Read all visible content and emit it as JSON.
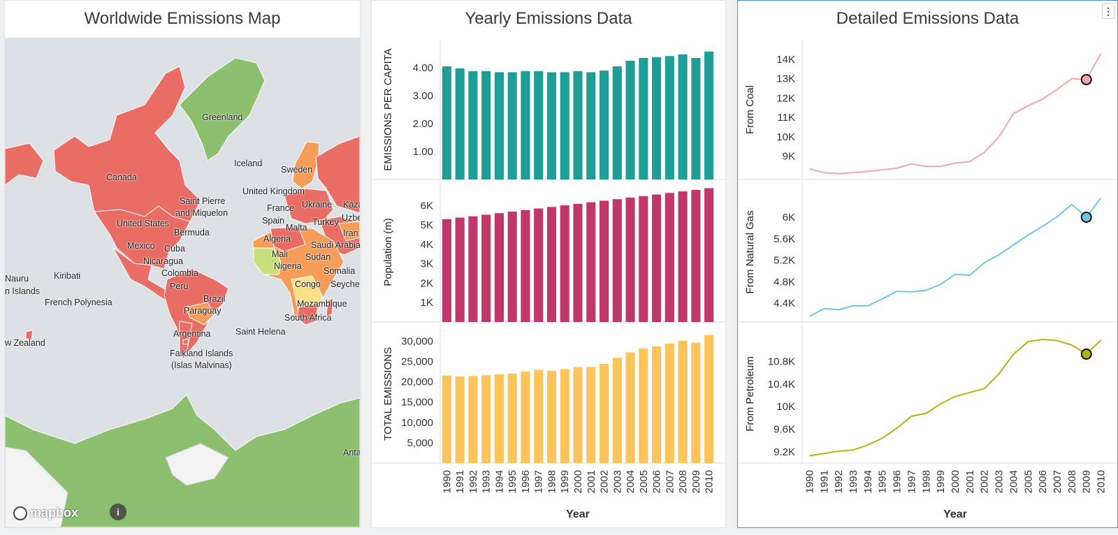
{
  "panels": {
    "map_title": "Worldwide Emissions Map",
    "yearly_title": "Yearly Emissions Data",
    "detail_title": "Detailed Emissions Data"
  },
  "map": {
    "labels": {
      "greenland": "Greenland",
      "iceland": "Iceland",
      "sweden": "Sweden",
      "canada": "Canada",
      "uk": "United Kingdom",
      "saint_pierre_1": "Saint Pierre",
      "saint_pierre_2": "and Miquelon",
      "france": "France",
      "ukraine": "Ukraine",
      "kaz": "Kaza",
      "spain": "Spain",
      "uzbe": "Uzbe",
      "malta": "Malta",
      "turkey": "Turkey",
      "iran": "Iran",
      "us": "United States",
      "bermuda": "Bermuda",
      "algeria": "Algeria",
      "saudi": "Saudi Arabia",
      "mexico": "Mexico",
      "cuba": "Cuba",
      "mali": "Mali",
      "sudan": "Sudan",
      "nicaragua": "Nicaragua",
      "nigeria": "Nigeria",
      "colombia": "Colombia",
      "somalia": "Somalia",
      "nauru": "Nauru",
      "kiribati": "Kiribati",
      "congo": "Congo",
      "seyche": "Seyche",
      "islands": "n Islands",
      "peru": "Peru",
      "brazil": "Brazil",
      "french_poly": "French Polynesia",
      "mozambique": "Mozambique",
      "paraguay": "Paraguay",
      "south_africa": "South Africa",
      "argentina": "Argentina",
      "saint_helena": "Saint Helena",
      "new_zealand": "w Zealand",
      "falkland_1": "Falkland Islands",
      "falkland_2": "(Islas Malvinas)",
      "anta": "Anta"
    },
    "attribution": "mapbox",
    "info_icon": "i"
  },
  "detail_menu_icon": "⋮",
  "chart_data": [
    {
      "type": "bar",
      "ylabel": "EMISSIONS PER CAPITA",
      "categories": [
        "1990",
        "1991",
        "1992",
        "1993",
        "1994",
        "1995",
        "1996",
        "1997",
        "1998",
        "1999",
        "2000",
        "2001",
        "2002",
        "2003",
        "2004",
        "2005",
        "2006",
        "2007",
        "2008",
        "2009",
        "2010"
      ],
      "values": [
        4.05,
        3.98,
        3.88,
        3.88,
        3.84,
        3.84,
        3.88,
        3.88,
        3.84,
        3.84,
        3.88,
        3.84,
        3.9,
        4.05,
        4.25,
        4.35,
        4.38,
        4.42,
        4.48,
        4.35,
        4.58
      ],
      "ylim": [
        0,
        5.0
      ],
      "yticks": [
        "1.00",
        "2.00",
        "3.00",
        "4.00"
      ],
      "color": "#1e9e96"
    },
    {
      "type": "bar",
      "ylabel": "Population (m)",
      "categories": [
        "1990",
        "1991",
        "1992",
        "1993",
        "1994",
        "1995",
        "1996",
        "1997",
        "1998",
        "1999",
        "2000",
        "2001",
        "2002",
        "2003",
        "2004",
        "2005",
        "2006",
        "2007",
        "2008",
        "2009",
        "2010"
      ],
      "values": [
        5300,
        5380,
        5450,
        5530,
        5610,
        5690,
        5770,
        5850,
        5930,
        6010,
        6090,
        6170,
        6250,
        6330,
        6410,
        6490,
        6570,
        6650,
        6730,
        6810,
        6900
      ],
      "ylim": [
        0,
        7200
      ],
      "yticks": [
        "1K",
        "2K",
        "3K",
        "4K",
        "5K",
        "6K"
      ],
      "color": "#c0386a"
    },
    {
      "type": "bar",
      "xlabel": "Year",
      "ylabel": "TOTAL EMISSIONS",
      "categories": [
        "1990",
        "1991",
        "1992",
        "1993",
        "1994",
        "1995",
        "1996",
        "1997",
        "1998",
        "1999",
        "2000",
        "2001",
        "2002",
        "2003",
        "2004",
        "2005",
        "2006",
        "2007",
        "2008",
        "2009",
        "2010"
      ],
      "values": [
        21500,
        21300,
        21400,
        21600,
        21800,
        22000,
        22500,
        22900,
        22700,
        23100,
        23600,
        23600,
        24400,
        25900,
        27200,
        28200,
        28700,
        29400,
        30100,
        29600,
        31500
      ],
      "ylim": [
        0,
        34000
      ],
      "yticks": [
        "5,000",
        "10,000",
        "15,000",
        "20,000",
        "25,000",
        "30,000"
      ],
      "color": "#fdc45c"
    },
    {
      "type": "line",
      "ylabel": "From Coal",
      "x": [
        "1990",
        "1991",
        "1992",
        "1993",
        "1994",
        "1995",
        "1996",
        "1997",
        "1998",
        "1999",
        "2000",
        "2001",
        "2002",
        "2003",
        "2004",
        "2005",
        "2006",
        "2007",
        "2008",
        "2009",
        "2010"
      ],
      "values": [
        8350,
        8150,
        8100,
        8150,
        8220,
        8300,
        8380,
        8600,
        8480,
        8480,
        8650,
        8720,
        9200,
        10000,
        11200,
        11600,
        11950,
        12450,
        13000,
        12950,
        14300
      ],
      "ylim": [
        7800,
        15000
      ],
      "yticks": [
        "9K",
        "10K",
        "11K",
        "12K",
        "13K",
        "14K"
      ],
      "highlight_year": "2009",
      "color": "#f4a7a8"
    },
    {
      "type": "line",
      "ylabel": "From Natural Gas",
      "x": [
        "1990",
        "1991",
        "1992",
        "1993",
        "1994",
        "1995",
        "1996",
        "1997",
        "1998",
        "1999",
        "2000",
        "2001",
        "2002",
        "2003",
        "2004",
        "2005",
        "2006",
        "2007",
        "2008",
        "2009",
        "2010"
      ],
      "values": [
        4150,
        4300,
        4280,
        4350,
        4350,
        4480,
        4620,
        4610,
        4640,
        4750,
        4940,
        4920,
        5150,
        5300,
        5480,
        5670,
        5830,
        6010,
        6240,
        6000,
        6360
      ],
      "ylim": [
        4050,
        6650
      ],
      "yticks": [
        "4.4K",
        "4.8K",
        "5.2K",
        "5.6K",
        "6K"
      ],
      "highlight_year": "2009",
      "color": "#6cc7e8"
    },
    {
      "type": "line",
      "xlabel": "Year",
      "ylabel": "From Petroleum",
      "x": [
        "1990",
        "1991",
        "1992",
        "1993",
        "1994",
        "1995",
        "1996",
        "1997",
        "1998",
        "1999",
        "2000",
        "2001",
        "2002",
        "2003",
        "2004",
        "2005",
        "2006",
        "2007",
        "2008",
        "2009",
        "2010"
      ],
      "values": [
        9130,
        9170,
        9210,
        9230,
        9320,
        9440,
        9620,
        9830,
        9880,
        10050,
        10180,
        10250,
        10320,
        10580,
        10930,
        11150,
        11190,
        11170,
        11090,
        10930,
        11180
      ],
      "ylim": [
        9000,
        11450
      ],
      "yticks": [
        "9.2K",
        "9.6K",
        "10K",
        "10.4K",
        "10.8K"
      ],
      "highlight_year": "2009",
      "color": "#b5b40c"
    }
  ]
}
